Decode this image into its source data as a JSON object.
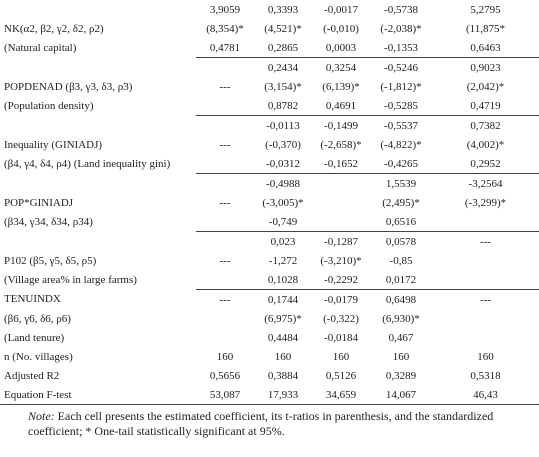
{
  "table": {
    "rows": [
      [
        null,
        "3,9059",
        "0,3393",
        "-0,0017",
        "-0,5738",
        "5,2795"
      ],
      [
        "NK(α2, β2, γ2, δ2, ρ2)",
        "(8,354)*",
        "(4,521)*",
        "(-0,010)",
        "(-2,038)*",
        "(11,875*"
      ],
      [
        "(Natural capital)",
        "0,4781",
        "0,2865",
        "0,0003",
        "-0,1353",
        "0,6463"
      ],
      [
        null,
        null,
        "0,2434",
        "0,3254",
        "-0,5246",
        "0,9023"
      ],
      [
        "POPDENAD (β3, γ3, δ3, ρ3)",
        "---",
        "(3,154)*",
        "(6,139)*",
        "(-1,812)*",
        "(2,042)*"
      ],
      [
        "(Population density)",
        null,
        "0,8782",
        "0,4691",
        "-0,5285",
        "0,4719"
      ],
      [
        null,
        null,
        "-0,0113",
        "-0,1499",
        "-0,5537",
        "0,7382"
      ],
      [
        "Inequality (GINIADJ)",
        "---",
        "(-0,370)",
        "(-2,658)*",
        "(-4,822)*",
        "(4,002)*"
      ],
      [
        "(β4, γ4, δ4, ρ4)  (Land inequality gini)",
        null,
        "-0,0312",
        "-0,1652",
        "-0,4265",
        "0,2952"
      ],
      [
        null,
        null,
        "-0,4988",
        null,
        "1,5539",
        "-3,2564"
      ],
      [
        "POP*GINIADJ",
        "---",
        "(-3,005)*",
        null,
        "(2,495)*",
        "(-3,299)*"
      ],
      [
        "(β34, γ34, δ34, ρ34)",
        null,
        "-0,749",
        null,
        "0,6516",
        null
      ],
      [
        null,
        null,
        "0,023",
        "-0,1287",
        "0,0578",
        "---"
      ],
      [
        "P102  (β5, γ5, δ5, ρ5)",
        "---",
        "-1,272",
        "(-3,210)*",
        "-0,85",
        null
      ],
      [
        "(Village area% in large farms)",
        null,
        "0,1028",
        "-0,2292",
        "0,0172",
        null
      ],
      [
        "TENUINDX",
        "---",
        "0,1744",
        "-0,0179",
        "0,6498",
        "---"
      ],
      [
        "(β6, γ6, δ6, ρ6)",
        null,
        "(6,975)*",
        "(-0,322)",
        "(6,930)*",
        null
      ],
      [
        "(Land tenure)",
        null,
        "0,4484",
        "-0,0184",
        "0,467",
        null
      ],
      [
        "n (No. villages)",
        "160",
        "160",
        "160",
        "160",
        "160"
      ],
      [
        "Adjusted R2",
        "0,5656",
        "0,3884",
        "0,5126",
        "0,3289",
        "0,5318"
      ],
      [
        "Equation F-test",
        "53,087",
        "17,933",
        "34,659",
        "14,067",
        "46,43"
      ]
    ]
  },
  "note": {
    "label": "Note:",
    "text": "Each cell presents the estimated coefficient, its t-ratios in parenthesis, and the standardized coefficient; * One-tail statistically significant at 95%."
  }
}
